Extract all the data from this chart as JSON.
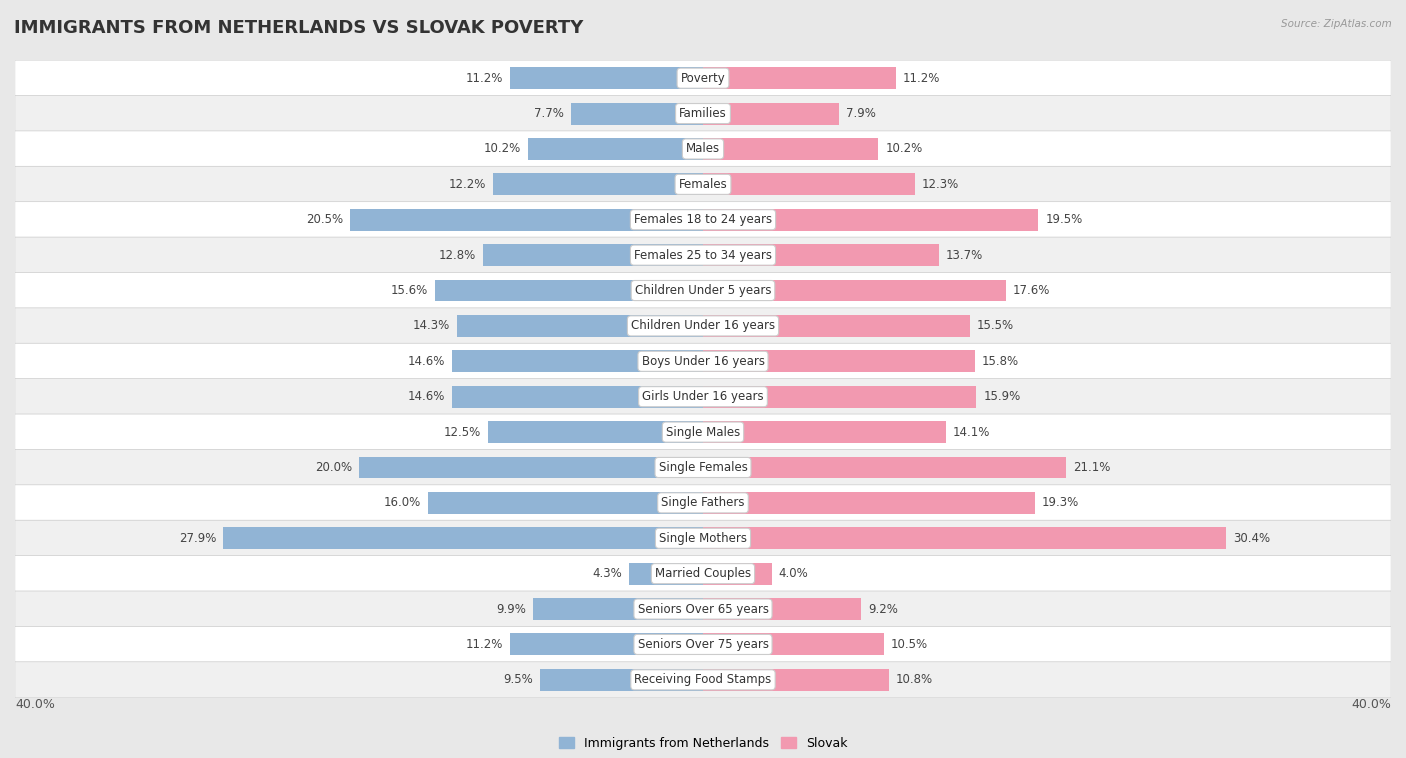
{
  "title": "IMMIGRANTS FROM NETHERLANDS VS SLOVAK POVERTY",
  "source": "Source: ZipAtlas.com",
  "categories": [
    "Poverty",
    "Families",
    "Males",
    "Females",
    "Females 18 to 24 years",
    "Females 25 to 34 years",
    "Children Under 5 years",
    "Children Under 16 years",
    "Boys Under 16 years",
    "Girls Under 16 years",
    "Single Males",
    "Single Females",
    "Single Fathers",
    "Single Mothers",
    "Married Couples",
    "Seniors Over 65 years",
    "Seniors Over 75 years",
    "Receiving Food Stamps"
  ],
  "netherlands_values": [
    11.2,
    7.7,
    10.2,
    12.2,
    20.5,
    12.8,
    15.6,
    14.3,
    14.6,
    14.6,
    12.5,
    20.0,
    16.0,
    27.9,
    4.3,
    9.9,
    11.2,
    9.5
  ],
  "slovak_values": [
    11.2,
    7.9,
    10.2,
    12.3,
    19.5,
    13.7,
    17.6,
    15.5,
    15.8,
    15.9,
    14.1,
    21.1,
    19.3,
    30.4,
    4.0,
    9.2,
    10.5,
    10.8
  ],
  "netherlands_color": "#91b4d5",
  "slovak_color": "#f299b0",
  "netherlands_label": "Immigrants from Netherlands",
  "slovak_label": "Slovak",
  "xlim": 40.0,
  "background_color": "#e8e8e8",
  "row_bg_color": "#ffffff",
  "alt_row_bg_color": "#f0f0f0",
  "title_fontsize": 13,
  "label_fontsize": 8.5,
  "value_fontsize": 8.5,
  "bar_height": 0.62
}
